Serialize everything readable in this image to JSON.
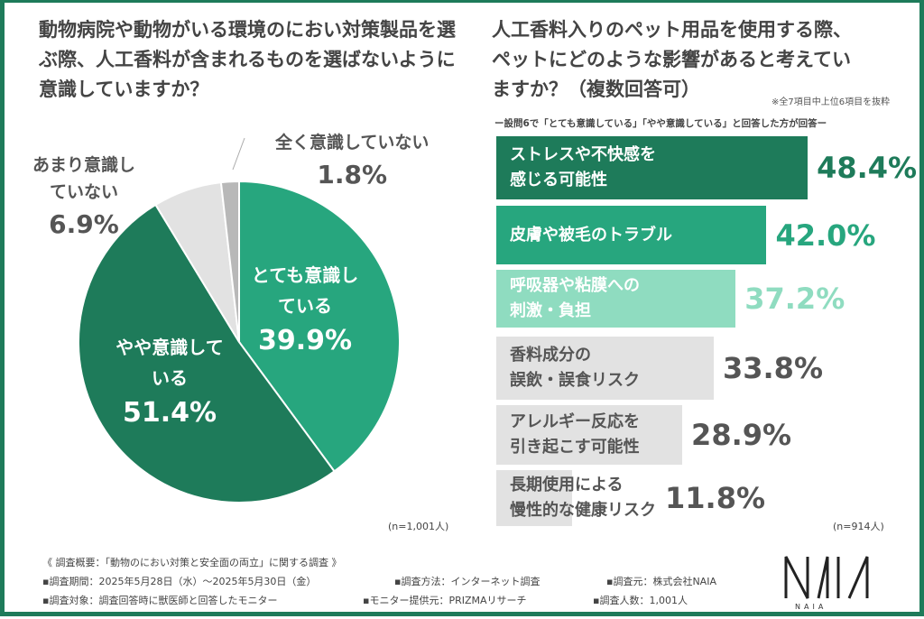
{
  "chart_data": [
    {
      "type": "pie",
      "title": "動物病院や動物がいる環境のにおい対策製品を選ぶ際、人工香料が含まれるものを選ばないように意識していますか？",
      "labels": [
        "とても意識している",
        "やや意識している",
        "あまり意識していない",
        "全く意識していない"
      ],
      "values": [
        39.9,
        51.4,
        6.9,
        1.8
      ],
      "value_labels": [
        "39.9%",
        "51.4%",
        "6.9%",
        "1.8%"
      ],
      "colors": [
        "#27a67e",
        "#1e7b5a",
        "#e2e2e2",
        "#b8b8b8"
      ],
      "note": "(n=1,001人)"
    },
    {
      "type": "bar",
      "title": "人工香料入りのペット用品を使用する際、ペットにどのような影響があると考えていますか？（複数回答可）",
      "footnote": "※全7項目中上位6項目を抜粋",
      "subtitle": "ー設問6で「とても意識している」「やや意識している」と回答した方が回答ー",
      "categories": [
        "ストレスや不快感を\n感じる可能性",
        "皮膚や被毛のトラブル",
        "呼吸器や粘膜への\n刺激・負担",
        "香料成分の\n誤飲・誤食リスク",
        "アレルギー反応を\n引き起こす可能性",
        "長期使用による\n慢性的な健康リスク"
      ],
      "values": [
        48.4,
        42.0,
        37.2,
        33.8,
        28.9,
        11.8
      ],
      "value_labels": [
        "48.4%",
        "42.0%",
        "37.2%",
        "33.8%",
        "28.9%",
        "11.8%"
      ],
      "colors": [
        "#1e7b5a",
        "#27a67e",
        "#8fdcc0",
        "#e2e2e2",
        "#e2e2e2",
        "#e2e2e2"
      ],
      "value_colors": [
        "#1e7b5a",
        "#27a67e",
        "#8fdcc0",
        "#555555",
        "#555555",
        "#555555"
      ],
      "note": "(n=914人)"
    }
  ],
  "footer": {
    "heading": "《 調査概要：「動物のにおい対策と安全面の両立」に関する調査 》",
    "period": "▪調査期間：2025年5月28日（水）～2025年5月30日（金）",
    "method": "▪調査方法：インターネット調査",
    "source": "▪調査元：株式会社NAIA",
    "target": "▪調査対象：調査回答時に獣医師と回答したモニター",
    "provider": "▪モニター提供元：PRIZMAリサーチ",
    "count": "▪調査人数：1,001人"
  },
  "logo": {
    "text": "NAIA"
  }
}
